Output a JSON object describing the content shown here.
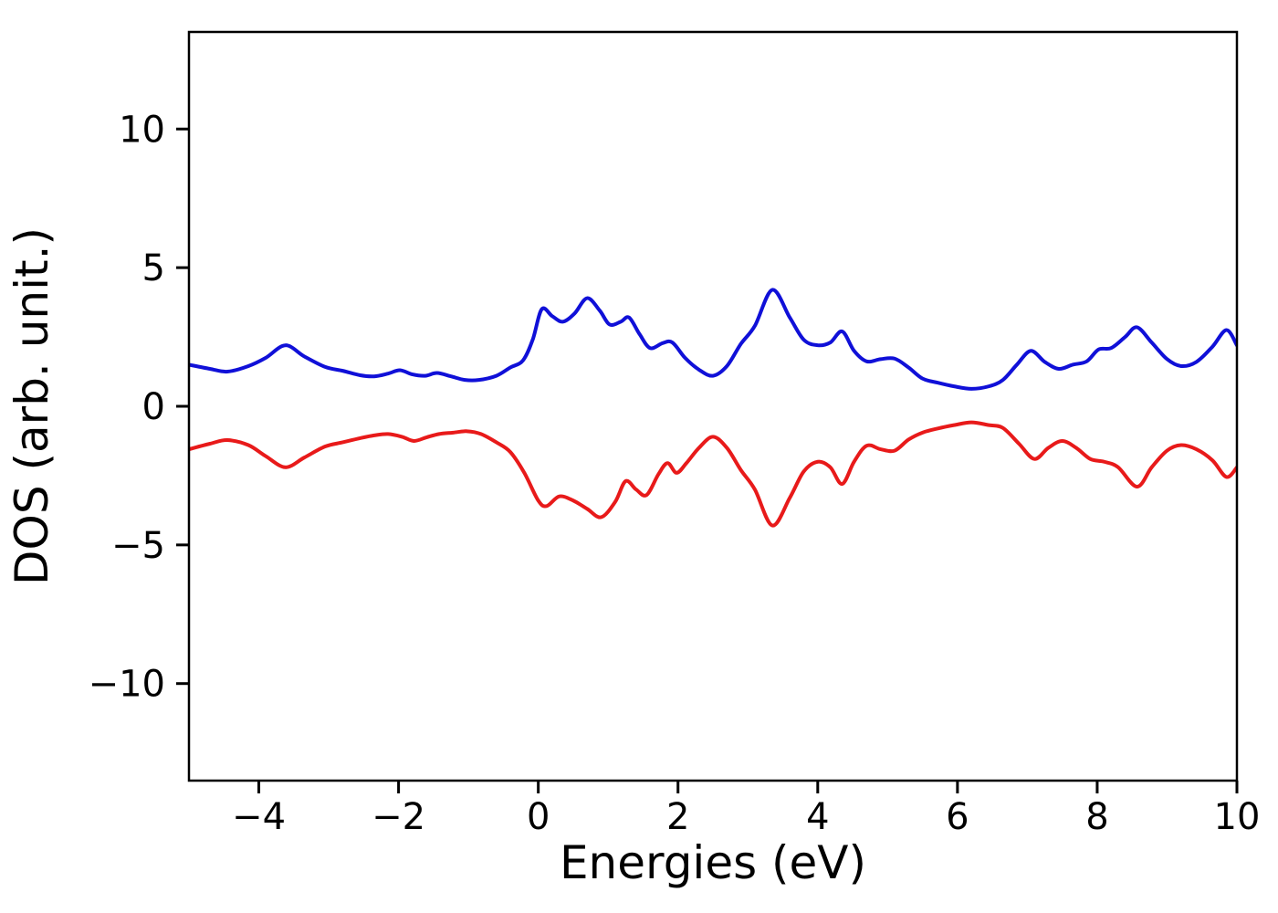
{
  "figure": {
    "background": "#ffffff",
    "frame_color": "#000000"
  },
  "chart_data": {
    "type": "line",
    "title": "",
    "xlabel": "Energies (eV)",
    "ylabel": "DOS (arb. unit.)",
    "xlim": [
      -5,
      10
    ],
    "ylim": [
      -13.5,
      13.5
    ],
    "x_ticks": [
      -4,
      -2,
      0,
      2,
      4,
      6,
      8,
      10
    ],
    "y_ticks": [
      -10,
      -5,
      0,
      5,
      10
    ],
    "grid": false,
    "legend": null,
    "series": [
      {
        "name": "spin-up-dos",
        "label": "spin up DOS",
        "color": "#1010d8",
        "linewidth": 4,
        "points": [
          [
            -5.0,
            1.5
          ],
          [
            -4.7,
            1.35
          ],
          [
            -4.45,
            1.25
          ],
          [
            -4.15,
            1.45
          ],
          [
            -3.9,
            1.75
          ],
          [
            -3.62,
            2.2
          ],
          [
            -3.35,
            1.8
          ],
          [
            -3.05,
            1.42
          ],
          [
            -2.8,
            1.28
          ],
          [
            -2.55,
            1.12
          ],
          [
            -2.35,
            1.08
          ],
          [
            -2.15,
            1.18
          ],
          [
            -1.98,
            1.3
          ],
          [
            -1.8,
            1.15
          ],
          [
            -1.62,
            1.1
          ],
          [
            -1.45,
            1.2
          ],
          [
            -1.25,
            1.08
          ],
          [
            -1.05,
            0.95
          ],
          [
            -0.85,
            0.95
          ],
          [
            -0.6,
            1.1
          ],
          [
            -0.4,
            1.4
          ],
          [
            -0.22,
            1.65
          ],
          [
            -0.08,
            2.4
          ],
          [
            0.05,
            3.5
          ],
          [
            0.2,
            3.25
          ],
          [
            0.35,
            3.05
          ],
          [
            0.52,
            3.35
          ],
          [
            0.7,
            3.9
          ],
          [
            0.88,
            3.45
          ],
          [
            1.02,
            2.95
          ],
          [
            1.18,
            3.05
          ],
          [
            1.3,
            3.2
          ],
          [
            1.45,
            2.6
          ],
          [
            1.6,
            2.1
          ],
          [
            1.78,
            2.28
          ],
          [
            1.92,
            2.3
          ],
          [
            2.1,
            1.75
          ],
          [
            2.3,
            1.32
          ],
          [
            2.5,
            1.1
          ],
          [
            2.7,
            1.45
          ],
          [
            2.9,
            2.25
          ],
          [
            3.1,
            2.9
          ],
          [
            3.35,
            4.2
          ],
          [
            3.6,
            3.2
          ],
          [
            3.8,
            2.4
          ],
          [
            4.0,
            2.2
          ],
          [
            4.18,
            2.3
          ],
          [
            4.35,
            2.7
          ],
          [
            4.52,
            2.0
          ],
          [
            4.7,
            1.62
          ],
          [
            4.9,
            1.7
          ],
          [
            5.1,
            1.72
          ],
          [
            5.3,
            1.4
          ],
          [
            5.5,
            1.0
          ],
          [
            5.72,
            0.85
          ],
          [
            5.95,
            0.72
          ],
          [
            6.2,
            0.63
          ],
          [
            6.45,
            0.72
          ],
          [
            6.65,
            0.95
          ],
          [
            6.85,
            1.5
          ],
          [
            7.05,
            2.0
          ],
          [
            7.25,
            1.6
          ],
          [
            7.45,
            1.35
          ],
          [
            7.65,
            1.5
          ],
          [
            7.85,
            1.62
          ],
          [
            8.02,
            2.05
          ],
          [
            8.2,
            2.1
          ],
          [
            8.4,
            2.5
          ],
          [
            8.57,
            2.85
          ],
          [
            8.78,
            2.3
          ],
          [
            9.0,
            1.7
          ],
          [
            9.2,
            1.45
          ],
          [
            9.42,
            1.6
          ],
          [
            9.65,
            2.15
          ],
          [
            9.85,
            2.75
          ],
          [
            10.0,
            2.2
          ]
        ]
      },
      {
        "name": "spin-down-dos",
        "label": "spin down DOS",
        "color": "#e81a1a",
        "linewidth": 4,
        "points": [
          [
            -5.0,
            -1.55
          ],
          [
            -4.7,
            -1.35
          ],
          [
            -4.45,
            -1.22
          ],
          [
            -4.15,
            -1.4
          ],
          [
            -3.9,
            -1.8
          ],
          [
            -3.62,
            -2.2
          ],
          [
            -3.35,
            -1.85
          ],
          [
            -3.05,
            -1.45
          ],
          [
            -2.8,
            -1.3
          ],
          [
            -2.55,
            -1.15
          ],
          [
            -2.35,
            -1.05
          ],
          [
            -2.15,
            -1.0
          ],
          [
            -1.95,
            -1.1
          ],
          [
            -1.78,
            -1.25
          ],
          [
            -1.6,
            -1.12
          ],
          [
            -1.42,
            -1.0
          ],
          [
            -1.22,
            -0.95
          ],
          [
            -1.02,
            -0.9
          ],
          [
            -0.82,
            -1.0
          ],
          [
            -0.6,
            -1.3
          ],
          [
            -0.4,
            -1.65
          ],
          [
            -0.2,
            -2.4
          ],
          [
            0.0,
            -3.4
          ],
          [
            0.12,
            -3.6
          ],
          [
            0.3,
            -3.25
          ],
          [
            0.5,
            -3.4
          ],
          [
            0.7,
            -3.7
          ],
          [
            0.9,
            -4.0
          ],
          [
            1.1,
            -3.45
          ],
          [
            1.25,
            -2.7
          ],
          [
            1.4,
            -3.0
          ],
          [
            1.55,
            -3.2
          ],
          [
            1.72,
            -2.45
          ],
          [
            1.85,
            -2.05
          ],
          [
            1.98,
            -2.4
          ],
          [
            2.12,
            -2.05
          ],
          [
            2.3,
            -1.5
          ],
          [
            2.5,
            -1.1
          ],
          [
            2.7,
            -1.5
          ],
          [
            2.9,
            -2.3
          ],
          [
            3.1,
            -3.0
          ],
          [
            3.35,
            -4.3
          ],
          [
            3.6,
            -3.3
          ],
          [
            3.8,
            -2.35
          ],
          [
            4.0,
            -2.0
          ],
          [
            4.18,
            -2.2
          ],
          [
            4.35,
            -2.8
          ],
          [
            4.52,
            -2.0
          ],
          [
            4.7,
            -1.42
          ],
          [
            4.9,
            -1.55
          ],
          [
            5.1,
            -1.6
          ],
          [
            5.3,
            -1.2
          ],
          [
            5.5,
            -0.95
          ],
          [
            5.72,
            -0.8
          ],
          [
            5.95,
            -0.68
          ],
          [
            6.2,
            -0.58
          ],
          [
            6.45,
            -0.68
          ],
          [
            6.65,
            -0.78
          ],
          [
            6.88,
            -1.35
          ],
          [
            7.1,
            -1.9
          ],
          [
            7.3,
            -1.5
          ],
          [
            7.5,
            -1.25
          ],
          [
            7.7,
            -1.5
          ],
          [
            7.9,
            -1.9
          ],
          [
            8.1,
            -2.0
          ],
          [
            8.3,
            -2.2
          ],
          [
            8.57,
            -2.9
          ],
          [
            8.78,
            -2.2
          ],
          [
            9.0,
            -1.6
          ],
          [
            9.2,
            -1.4
          ],
          [
            9.42,
            -1.55
          ],
          [
            9.65,
            -1.95
          ],
          [
            9.85,
            -2.55
          ],
          [
            10.0,
            -2.2
          ]
        ]
      }
    ]
  }
}
